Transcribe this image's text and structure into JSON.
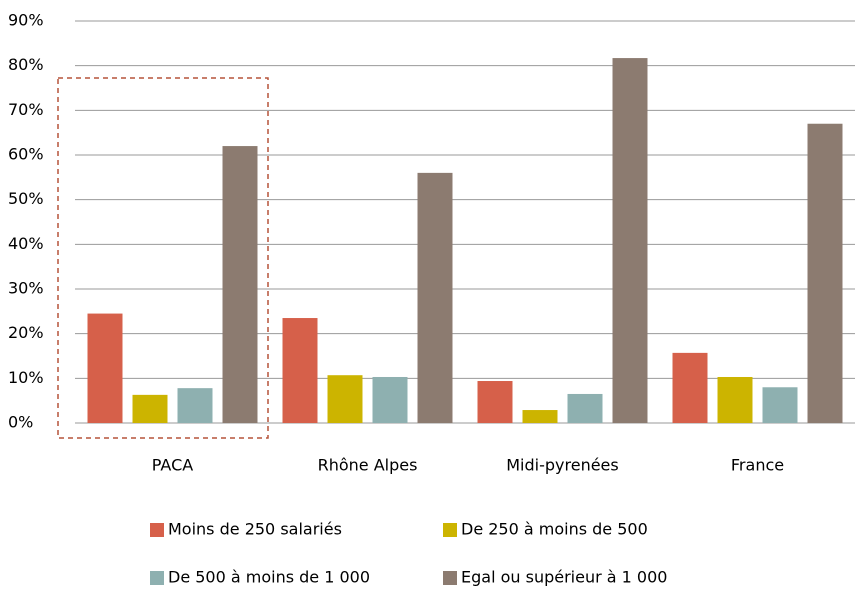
{
  "chart_data": {
    "type": "bar",
    "categories": [
      "PACA",
      "Rhône Alpes",
      "Midi-pyrenées",
      "France"
    ],
    "series": [
      {
        "name": "Moins de 250 salariés",
        "color": "#d6604a",
        "values": [
          24.5,
          23.5,
          9.4,
          15.7
        ]
      },
      {
        "name": "De 250 à moins de 500",
        "color": "#ccb400",
        "values": [
          6.3,
          10.7,
          2.9,
          10.3
        ]
      },
      {
        "name": "De 500 à moins de 1 000",
        "color": "#8eb0b0",
        "values": [
          7.8,
          10.3,
          6.5,
          8
        ]
      },
      {
        "name": "Egal ou supérieur à 1 000",
        "color": "#8c7b70",
        "values": [
          62,
          56,
          81.7,
          67
        ]
      }
    ],
    "ylim": [
      0,
      90
    ],
    "yticks": [
      {
        "value": 0,
        "label": "0%"
      },
      {
        "value": 10,
        "label": "10%"
      },
      {
        "value": 20,
        "label": "20%"
      },
      {
        "value": 30,
        "label": "30%"
      },
      {
        "value": 40,
        "label": "40%"
      },
      {
        "value": 50,
        "label": "50%"
      },
      {
        "value": 60,
        "label": "60%"
      },
      {
        "value": 70,
        "label": "70%"
      },
      {
        "value": 80,
        "label": "80%"
      },
      {
        "value": 90,
        "label": "90%"
      }
    ],
    "grid": true,
    "legend": "bottom"
  }
}
